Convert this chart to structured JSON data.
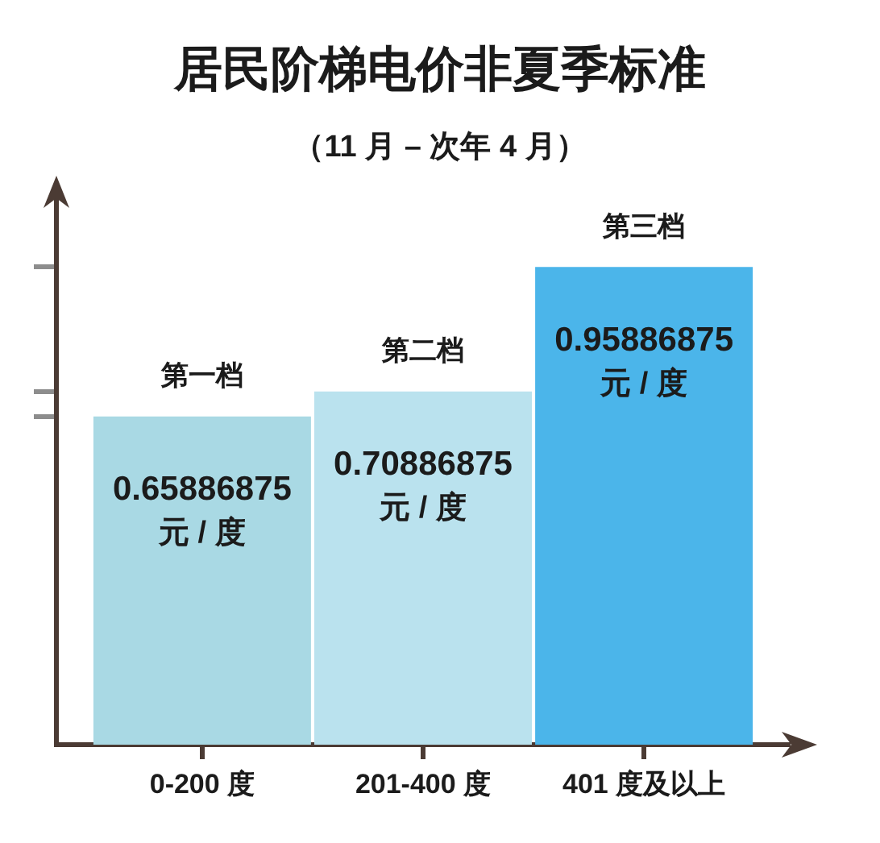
{
  "chart_data": {
    "type": "bar",
    "title": "居民阶梯电价非夏季标准",
    "subtitle": "（11 月 – 次年 4 月）",
    "categories": [
      "0-200 度",
      "201-400 度",
      "401 度及以上"
    ],
    "values": [
      0.65886875,
      0.70886875,
      0.95886875
    ],
    "colors": [
      "#a9d9e4",
      "#bae2ee",
      "#4bb5ea"
    ],
    "value_labels": [
      "0.65886875\n元 / 度",
      "0.70886875\n元 / 度",
      "0.95886875\n元 / 度"
    ],
    "annotations": [
      {
        "text": "第一档",
        "x": "0-200 度",
        "y": 0.65886875
      },
      {
        "text": "第二档",
        "x": "201-400 度",
        "y": 0.70886875
      },
      {
        "text": "第三档",
        "x": "401 度及以上",
        "y": 0.95886875
      }
    ],
    "ylim": [
      0,
      1.1
    ],
    "tick_labels": "x"
  }
}
